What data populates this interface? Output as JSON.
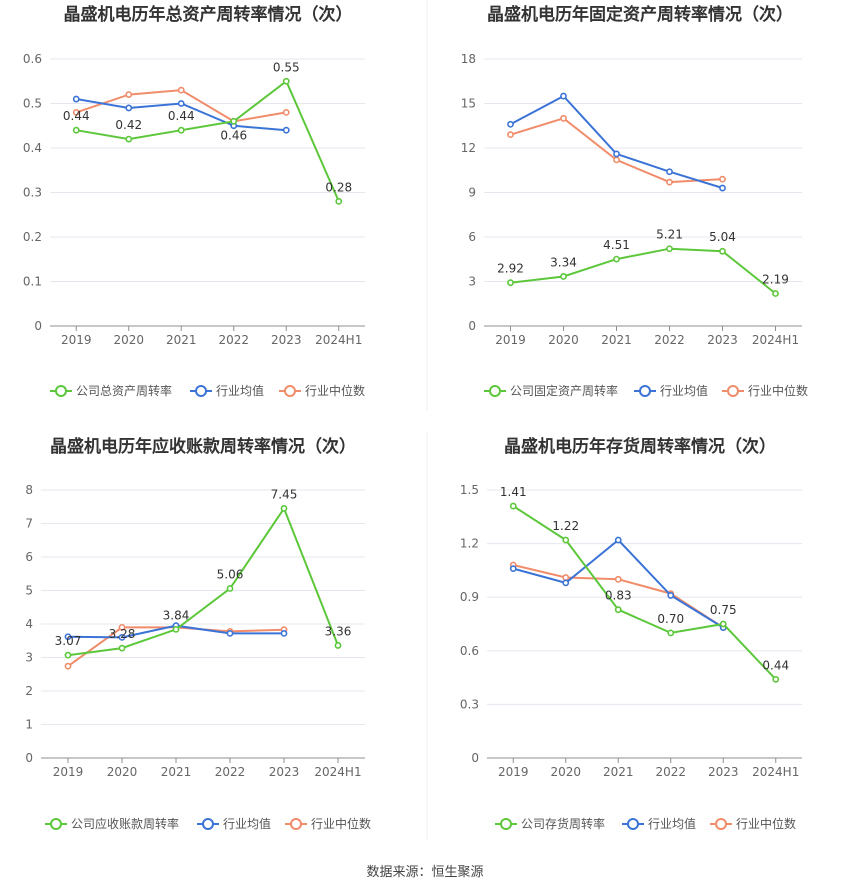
{
  "source_label": "数据来源：恒生聚源",
  "colors": {
    "company": "#5cc73a",
    "industry_avg": "#3b73d6",
    "industry_median": "#f08c6a"
  },
  "chart_data": [
    {
      "type": "line",
      "title": "晶盛机电历年总资产周转率情况（次）",
      "categories": [
        "2019",
        "2020",
        "2021",
        "2022",
        "2023",
        "2024H1"
      ],
      "ylim": [
        0,
        0.6
      ],
      "yticks": [
        "0",
        "0.1",
        "0.2",
        "0.3",
        "0.4",
        "0.5",
        "0.6"
      ],
      "series": [
        {
          "name": "公司总资产周转率",
          "values": [
            0.44,
            0.42,
            0.44,
            0.46,
            0.55,
            0.28
          ],
          "labels": [
            "0.44",
            "0.42",
            "0.44",
            "0.46",
            "0.55",
            "0.28"
          ]
        },
        {
          "name": "行业均值",
          "values": [
            0.51,
            0.49,
            0.5,
            0.45,
            0.44,
            null
          ]
        },
        {
          "name": "行业中位数",
          "values": [
            0.48,
            0.52,
            0.53,
            0.46,
            0.48,
            null
          ]
        }
      ]
    },
    {
      "type": "line",
      "title": "晶盛机电历年固定资产周转率情况（次）",
      "categories": [
        "2019",
        "2020",
        "2021",
        "2022",
        "2023",
        "2024H1"
      ],
      "ylim": [
        0,
        18
      ],
      "yticks": [
        "0",
        "3",
        "6",
        "9",
        "12",
        "15",
        "18"
      ],
      "series": [
        {
          "name": "公司固定资产周转率",
          "values": [
            2.92,
            3.34,
            4.51,
            5.21,
            5.04,
            2.19
          ],
          "labels": [
            "2.92",
            "3.34",
            "4.51",
            "5.21",
            "5.04",
            "2.19"
          ]
        },
        {
          "name": "行业均值",
          "values": [
            13.6,
            15.5,
            11.6,
            10.4,
            9.3,
            null
          ]
        },
        {
          "name": "行业中位数",
          "values": [
            12.9,
            14.0,
            11.2,
            9.7,
            9.9,
            null
          ]
        }
      ]
    },
    {
      "type": "line",
      "title": "晶盛机电历年应收账款周转率情况（次）",
      "categories": [
        "2019",
        "2020",
        "2021",
        "2022",
        "2023",
        "2024H1"
      ],
      "ylim": [
        0,
        8
      ],
      "yticks": [
        "0",
        "1",
        "2",
        "3",
        "4",
        "5",
        "6",
        "7",
        "8"
      ],
      "series": [
        {
          "name": "公司应收账款周转率",
          "values": [
            3.07,
            3.28,
            3.84,
            5.06,
            7.45,
            3.36
          ],
          "labels": [
            "3.07",
            "3.28",
            "3.84",
            "5.06",
            "7.45",
            "3.36"
          ]
        },
        {
          "name": "行业均值",
          "values": [
            3.62,
            3.6,
            3.95,
            3.72,
            3.72,
            null
          ]
        },
        {
          "name": "行业中位数",
          "values": [
            2.74,
            3.9,
            3.9,
            3.78,
            3.83,
            null
          ]
        }
      ]
    },
    {
      "type": "line",
      "title": "晶盛机电历年存货周转率情况（次）",
      "categories": [
        "2019",
        "2020",
        "2021",
        "2022",
        "2023",
        "2024H1"
      ],
      "ylim": [
        0,
        1.5
      ],
      "yticks": [
        "0",
        "0.3",
        "0.6",
        "0.9",
        "1.2",
        "1.5"
      ],
      "series": [
        {
          "name": "公司存货周转率",
          "values": [
            1.41,
            1.22,
            0.83,
            0.7,
            0.75,
            0.44
          ],
          "labels": [
            "1.41",
            "1.22",
            "0.83",
            "0.70",
            "0.75",
            "0.44"
          ]
        },
        {
          "name": "行业均值",
          "values": [
            1.06,
            0.98,
            1.22,
            0.91,
            0.73,
            null
          ]
        },
        {
          "name": "行业中位数",
          "values": [
            1.08,
            1.01,
            1.0,
            0.92,
            0.73,
            null
          ]
        }
      ]
    }
  ]
}
